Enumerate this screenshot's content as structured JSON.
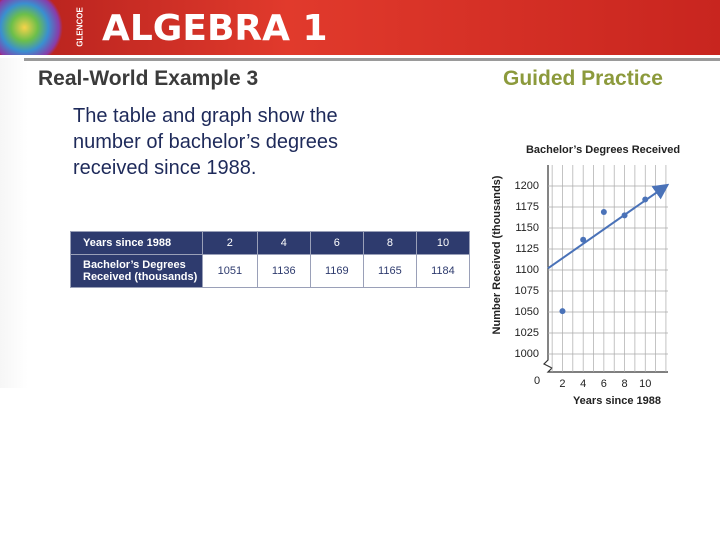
{
  "header": {
    "brand": "GLENCOE",
    "title": "ALGEBRA 1"
  },
  "section": {
    "title": "Real-World Example 3",
    "aside": "Guided Practice"
  },
  "body": {
    "lines": [
      "The table and graph show the",
      "number of bachelor’s degrees",
      "received since 1988."
    ]
  },
  "table": {
    "rows": [
      [
        "Years since 1988",
        "2",
        "4",
        "6",
        "8",
        "10"
      ],
      [
        "Bachelor’s Degrees Received (thousands)",
        "1051",
        "1136",
        "1169",
        "1165",
        "1184"
      ]
    ]
  },
  "chart_data": {
    "type": "scatter",
    "title": "Bachelor’s Degrees Received",
    "x_label": "Years since 1988",
    "y_label": "Number Received (thousands)",
    "origin_label": "0",
    "x": [
      2,
      4,
      6,
      8,
      10
    ],
    "values": [
      1051,
      1136,
      1169,
      1165,
      1184
    ],
    "color": "#4a72b8",
    "trend_line": {
      "x": [
        0.6,
        12
      ],
      "y": [
        1102,
        1200
      ]
    },
    "xlim": [
      0.6,
      12.2
    ],
    "ylim": [
      1000,
      1225
    ],
    "xticks": [
      2,
      4,
      6,
      8,
      10
    ],
    "xgrid": [
      1,
      2,
      3,
      4,
      5,
      6,
      7,
      8,
      9,
      10,
      11,
      12
    ],
    "yticks": [
      1000,
      1025,
      1050,
      1075,
      1100,
      1125,
      1150,
      1175,
      1200
    ],
    "grid": true
  }
}
